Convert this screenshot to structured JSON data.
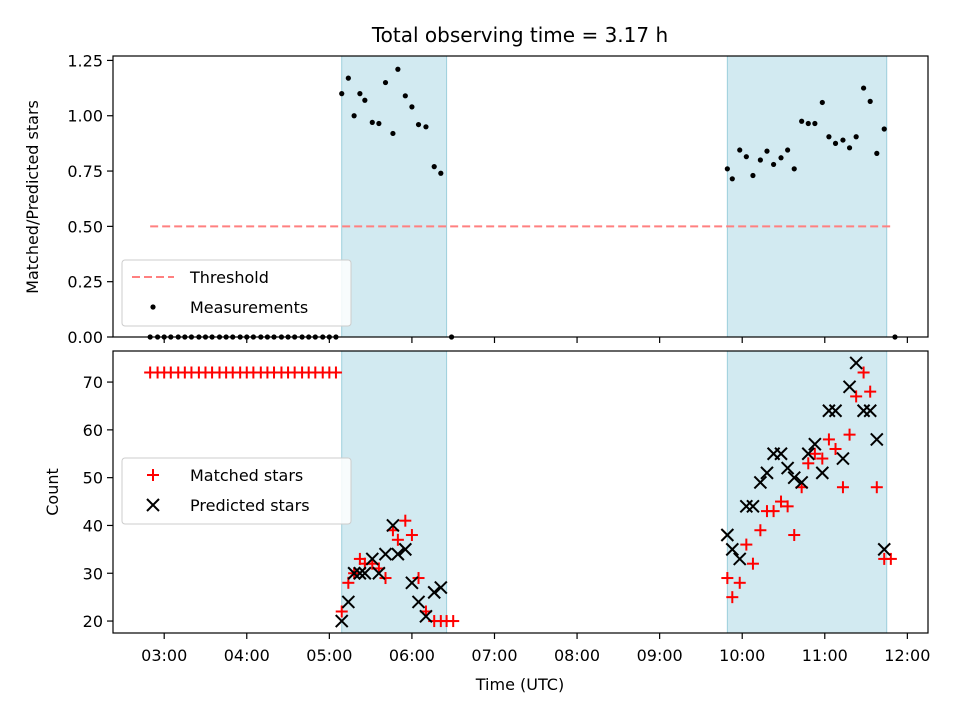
{
  "figure": {
    "title": "Total observing time = 3.17 h"
  },
  "chart_data": [
    {
      "type": "scatter",
      "title": "Total observing time = 3.17 h",
      "ylabel": "Matched/Predicted stars",
      "xlabel": "",
      "x_unit": "hours UTC",
      "xlim": [
        2.38,
        12.25
      ],
      "ylim": [
        0,
        1.27
      ],
      "yticks": [
        0.0,
        0.25,
        0.5,
        0.75,
        1.0,
        1.25
      ],
      "ytick_labels": [
        "0.00",
        "0.25",
        "0.50",
        "0.75",
        "1.00",
        "1.25"
      ],
      "shaded_intervals": [
        [
          5.15,
          6.42
        ],
        [
          9.82,
          11.75
        ]
      ],
      "shade_color": "#add8e6",
      "legend_position": "lower-left",
      "threshold": {
        "name": "Threshold",
        "y": 0.5,
        "x_range": [
          2.83,
          11.83
        ],
        "color": "#ff8080",
        "style": "dashed"
      },
      "measurements": {
        "name": "Measurements",
        "color": "#000000",
        "points": [
          [
            2.83,
            0
          ],
          [
            2.92,
            0
          ],
          [
            3.0,
            0
          ],
          [
            3.08,
            0
          ],
          [
            3.17,
            0
          ],
          [
            3.25,
            0
          ],
          [
            3.33,
            0
          ],
          [
            3.42,
            0
          ],
          [
            3.5,
            0
          ],
          [
            3.58,
            0
          ],
          [
            3.67,
            0
          ],
          [
            3.75,
            0
          ],
          [
            3.83,
            0
          ],
          [
            3.92,
            0
          ],
          [
            4.0,
            0
          ],
          [
            4.08,
            0
          ],
          [
            4.17,
            0
          ],
          [
            4.25,
            0
          ],
          [
            4.33,
            0
          ],
          [
            4.42,
            0
          ],
          [
            4.5,
            0
          ],
          [
            4.58,
            0
          ],
          [
            4.67,
            0
          ],
          [
            4.75,
            0
          ],
          [
            4.83,
            0
          ],
          [
            4.92,
            0
          ],
          [
            5.0,
            0
          ],
          [
            5.08,
            0
          ],
          [
            5.15,
            1.1
          ],
          [
            5.23,
            1.17
          ],
          [
            5.3,
            1.0
          ],
          [
            5.37,
            1.1
          ],
          [
            5.43,
            1.07
          ],
          [
            5.52,
            0.97
          ],
          [
            5.6,
            0.965
          ],
          [
            5.68,
            1.15
          ],
          [
            5.77,
            0.92
          ],
          [
            5.83,
            1.21
          ],
          [
            5.92,
            1.09
          ],
          [
            6.0,
            1.04
          ],
          [
            6.08,
            0.96
          ],
          [
            6.17,
            0.95
          ],
          [
            6.27,
            0.77
          ],
          [
            6.35,
            0.74
          ],
          [
            6.48,
            0.0
          ],
          [
            9.82,
            0.76
          ],
          [
            9.88,
            0.715
          ],
          [
            9.97,
            0.845
          ],
          [
            10.05,
            0.815
          ],
          [
            10.13,
            0.73
          ],
          [
            10.22,
            0.8
          ],
          [
            10.3,
            0.84
          ],
          [
            10.38,
            0.78
          ],
          [
            10.47,
            0.81
          ],
          [
            10.55,
            0.845
          ],
          [
            10.63,
            0.76
          ],
          [
            10.72,
            0.975
          ],
          [
            10.8,
            0.965
          ],
          [
            10.88,
            0.965
          ],
          [
            10.97,
            1.06
          ],
          [
            11.05,
            0.905
          ],
          [
            11.13,
            0.875
          ],
          [
            11.22,
            0.89
          ],
          [
            11.3,
            0.855
          ],
          [
            11.38,
            0.905
          ],
          [
            11.47,
            1.125
          ],
          [
            11.55,
            1.065
          ],
          [
            11.63,
            0.83
          ],
          [
            11.72,
            0.94
          ],
          [
            11.85,
            0.0
          ]
        ]
      }
    },
    {
      "type": "scatter",
      "title": "",
      "xlabel": "Time (UTC)",
      "ylabel": "Count",
      "x_unit": "hours UTC",
      "xlim": [
        2.38,
        12.25
      ],
      "ylim": [
        17.5,
        76.5
      ],
      "xticks": [
        3,
        4,
        5,
        6,
        7,
        8,
        9,
        10,
        11,
        12
      ],
      "xtick_labels": [
        "03:00",
        "04:00",
        "05:00",
        "06:00",
        "07:00",
        "08:00",
        "09:00",
        "10:00",
        "11:00",
        "12:00"
      ],
      "yticks": [
        20,
        30,
        40,
        50,
        60,
        70
      ],
      "ytick_labels": [
        "20",
        "30",
        "40",
        "50",
        "60",
        "70"
      ],
      "shaded_intervals": [
        [
          5.15,
          6.42
        ],
        [
          9.82,
          11.75
        ]
      ],
      "shade_color": "#add8e6",
      "legend_position": "center-left",
      "series": [
        {
          "name": "Matched stars",
          "marker": "plus",
          "color": "#ff0000",
          "points": [
            [
              2.83,
              72
            ],
            [
              2.92,
              72
            ],
            [
              3.0,
              72
            ],
            [
              3.08,
              72
            ],
            [
              3.17,
              72
            ],
            [
              3.25,
              72
            ],
            [
              3.33,
              72
            ],
            [
              3.42,
              72
            ],
            [
              3.5,
              72
            ],
            [
              3.58,
              72
            ],
            [
              3.67,
              72
            ],
            [
              3.75,
              72
            ],
            [
              3.83,
              72
            ],
            [
              3.92,
              72
            ],
            [
              4.0,
              72
            ],
            [
              4.08,
              72
            ],
            [
              4.17,
              72
            ],
            [
              4.25,
              72
            ],
            [
              4.33,
              72
            ],
            [
              4.42,
              72
            ],
            [
              4.5,
              72
            ],
            [
              4.58,
              72
            ],
            [
              4.67,
              72
            ],
            [
              4.75,
              72
            ],
            [
              4.83,
              72
            ],
            [
              4.92,
              72
            ],
            [
              5.0,
              72
            ],
            [
              5.08,
              72
            ],
            [
              5.15,
              22
            ],
            [
              5.23,
              28
            ],
            [
              5.3,
              30
            ],
            [
              5.37,
              33
            ],
            [
              5.43,
              32
            ],
            [
              5.52,
              32
            ],
            [
              5.6,
              31
            ],
            [
              5.68,
              29
            ],
            [
              5.77,
              39
            ],
            [
              5.83,
              37
            ],
            [
              5.92,
              41
            ],
            [
              6.0,
              38
            ],
            [
              6.08,
              29
            ],
            [
              6.17,
              22
            ],
            [
              6.27,
              20
            ],
            [
              6.35,
              20
            ],
            [
              6.42,
              20
            ],
            [
              6.5,
              20
            ],
            [
              9.82,
              29
            ],
            [
              9.88,
              25
            ],
            [
              9.97,
              28
            ],
            [
              10.05,
              36
            ],
            [
              10.13,
              32
            ],
            [
              10.22,
              39
            ],
            [
              10.3,
              43
            ],
            [
              10.38,
              43
            ],
            [
              10.47,
              45
            ],
            [
              10.55,
              44
            ],
            [
              10.63,
              38
            ],
            [
              10.72,
              48
            ],
            [
              10.8,
              53
            ],
            [
              10.88,
              55
            ],
            [
              10.97,
              54
            ],
            [
              11.05,
              58
            ],
            [
              11.13,
              56
            ],
            [
              11.22,
              48
            ],
            [
              11.3,
              59
            ],
            [
              11.38,
              67
            ],
            [
              11.47,
              72
            ],
            [
              11.55,
              68
            ],
            [
              11.63,
              48
            ],
            [
              11.72,
              33
            ],
            [
              11.8,
              33
            ]
          ]
        },
        {
          "name": "Predicted stars",
          "marker": "x",
          "color": "#000000",
          "points": [
            [
              5.15,
              20
            ],
            [
              5.23,
              24
            ],
            [
              5.3,
              30
            ],
            [
              5.37,
              30
            ],
            [
              5.43,
              30
            ],
            [
              5.52,
              33
            ],
            [
              5.6,
              30
            ],
            [
              5.68,
              34
            ],
            [
              5.77,
              40
            ],
            [
              5.83,
              34
            ],
            [
              5.92,
              35
            ],
            [
              6.0,
              28
            ],
            [
              6.08,
              24
            ],
            [
              6.17,
              21
            ],
            [
              6.27,
              26
            ],
            [
              6.35,
              27
            ],
            [
              9.82,
              38
            ],
            [
              9.88,
              35
            ],
            [
              9.97,
              33
            ],
            [
              10.05,
              44
            ],
            [
              10.13,
              44
            ],
            [
              10.22,
              49
            ],
            [
              10.3,
              51
            ],
            [
              10.38,
              55
            ],
            [
              10.47,
              55
            ],
            [
              10.55,
              52
            ],
            [
              10.63,
              50
            ],
            [
              10.72,
              49
            ],
            [
              10.8,
              55
            ],
            [
              10.88,
              57
            ],
            [
              10.97,
              51
            ],
            [
              11.05,
              64
            ],
            [
              11.13,
              64
            ],
            [
              11.22,
              54
            ],
            [
              11.3,
              69
            ],
            [
              11.38,
              74
            ],
            [
              11.47,
              64
            ],
            [
              11.55,
              64
            ],
            [
              11.63,
              58
            ],
            [
              11.72,
              35
            ]
          ]
        }
      ]
    }
  ]
}
